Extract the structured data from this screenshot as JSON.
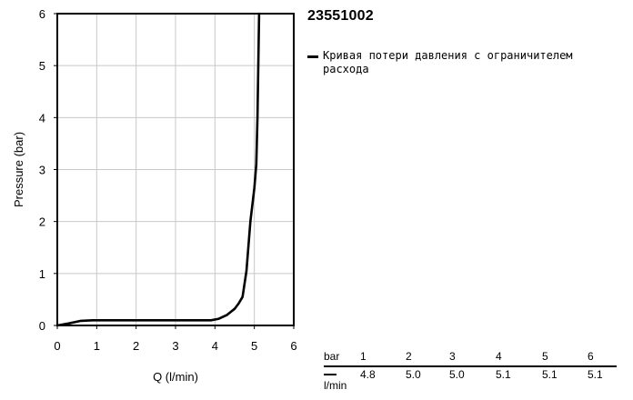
{
  "chart_data": {
    "type": "line",
    "title": "23551002",
    "xlabel": "Q (l/min)",
    "ylabel": "Pressure (bar)",
    "xlim": [
      0,
      6
    ],
    "ylim": [
      0,
      6
    ],
    "x_ticks": [
      "0",
      "1",
      "2",
      "3",
      "4",
      "5",
      "6"
    ],
    "y_ticks": [
      "0",
      "1",
      "2",
      "3",
      "4",
      "5",
      "6"
    ],
    "grid": true,
    "legend_position": "right",
    "series": [
      {
        "name": "Кривая потери давления с ограничителем расхода",
        "color": "#000000",
        "points": [
          [
            0.0,
            0.0
          ],
          [
            0.3,
            0.04
          ],
          [
            0.6,
            0.09
          ],
          [
            0.9,
            0.1
          ],
          [
            1.5,
            0.1
          ],
          [
            2.5,
            0.1
          ],
          [
            3.5,
            0.1
          ],
          [
            3.9,
            0.1
          ],
          [
            4.1,
            0.13
          ],
          [
            4.3,
            0.2
          ],
          [
            4.5,
            0.32
          ],
          [
            4.6,
            0.42
          ],
          [
            4.7,
            0.55
          ],
          [
            4.8,
            1.05
          ],
          [
            4.9,
            2.0
          ],
          [
            5.0,
            2.65
          ],
          [
            5.05,
            3.1
          ],
          [
            5.08,
            4.0
          ],
          [
            5.1,
            5.0
          ],
          [
            5.12,
            6.0
          ]
        ]
      }
    ]
  },
  "table": {
    "pressure_unit": "bar",
    "flow_unit": "l/min",
    "pressures": [
      "1",
      "2",
      "3",
      "4",
      "5",
      "6"
    ],
    "flows": [
      "4.8",
      "5.0",
      "5.0",
      "5.1",
      "5.1",
      "5.1"
    ]
  }
}
